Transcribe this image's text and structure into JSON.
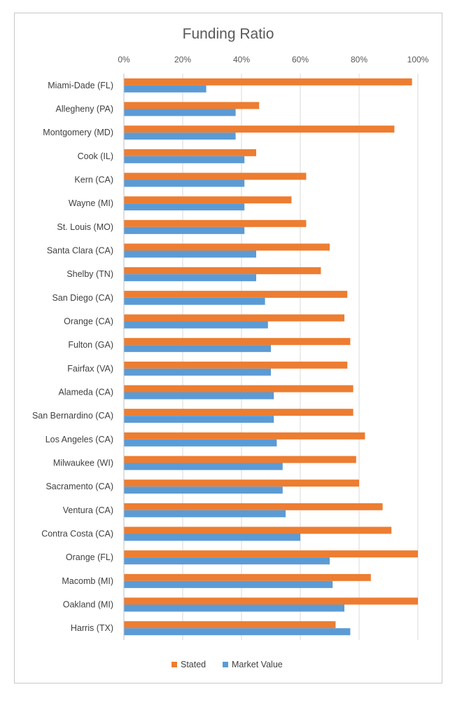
{
  "chart_data": {
    "type": "bar",
    "orientation": "horizontal",
    "title": "Funding Ratio",
    "xlabel": "",
    "ylabel": "",
    "xlim": [
      0,
      100
    ],
    "x_ticks": [
      "0%",
      "20%",
      "40%",
      "60%",
      "80%",
      "100%"
    ],
    "grid": "vertical",
    "legend_position": "bottom",
    "categories": [
      "Miami-Dade (FL)",
      "Allegheny (PA)",
      "Montgomery (MD)",
      "Cook (IL)",
      "Kern (CA)",
      "Wayne (MI)",
      "St. Louis (MO)",
      "Santa Clara (CA)",
      "Shelby (TN)",
      "San Diego (CA)",
      "Orange (CA)",
      "Fulton (GA)",
      "Fairfax (VA)",
      "Alameda (CA)",
      "San Bernardino (CA)",
      "Los Angeles (CA)",
      "Milwaukee (WI)",
      "Sacramento (CA)",
      "Ventura (CA)",
      "Contra Costa (CA)",
      "Orange (FL)",
      "Macomb (MI)",
      "Oakland (MI)",
      "Harris (TX)"
    ],
    "series": [
      {
        "name": "Stated",
        "color": "#ED7D31",
        "values": [
          98,
          46,
          92,
          45,
          62,
          57,
          62,
          70,
          67,
          76,
          75,
          77,
          76,
          78,
          78,
          82,
          79,
          80,
          88,
          91,
          100,
          84,
          100,
          72
        ]
      },
      {
        "name": "Market Value",
        "color": "#5B9BD5",
        "values": [
          28,
          38,
          38,
          41,
          41,
          41,
          41,
          45,
          45,
          48,
          49,
          50,
          50,
          51,
          51,
          52,
          54,
          54,
          55,
          60,
          70,
          71,
          75,
          77
        ]
      }
    ]
  }
}
